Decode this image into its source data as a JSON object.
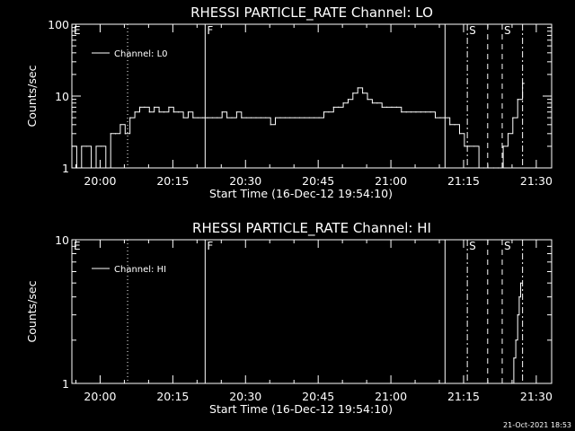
{
  "timestamp": "21-Oct-2021 18:53",
  "chart_data": [
    {
      "type": "line",
      "title": "RHESSI PARTICLE_RATE Channel: LO",
      "xlabel": "Start Time (16-Dec-12 19:54:10)",
      "ylabel": "Counts/sec",
      "yscale": "log",
      "ylim": [
        1,
        100
      ],
      "xlim_minutes_from_start": [
        0,
        99
      ],
      "x_ticks": [
        {
          "label": "20:00",
          "minutes": 5.83
        },
        {
          "label": "20:15",
          "minutes": 20.83
        },
        {
          "label": "20:30",
          "minutes": 35.83
        },
        {
          "label": "20:45",
          "minutes": 50.83
        },
        {
          "label": "21:00",
          "minutes": 65.83
        },
        {
          "label": "21:15",
          "minutes": 80.83
        },
        {
          "label": "21:30",
          "minutes": 95.83
        }
      ],
      "y_ticks": [
        {
          "label": "1",
          "value": 1
        },
        {
          "label": "10",
          "value": 10
        },
        {
          "label": "100",
          "value": 100
        }
      ],
      "legend": {
        "label": "Channel: L0",
        "placement": "top-left"
      },
      "markers": [
        {
          "label": "E",
          "minutes": 0,
          "style": "none"
        },
        {
          "label": "",
          "minutes": 11.5,
          "style": "dotted"
        },
        {
          "label": "F",
          "minutes": 27.5,
          "style": "solid"
        },
        {
          "label": "",
          "minutes": 77.0,
          "style": "solid"
        },
        {
          "label": "S",
          "minutes": 81.6,
          "style": "dashdot"
        },
        {
          "label": "",
          "minutes": 85.8,
          "style": "dashed"
        },
        {
          "label": "S",
          "minutes": 88.8,
          "style": "dashed"
        },
        {
          "label": "",
          "minutes": 93.0,
          "style": "dashdot"
        }
      ],
      "series": [
        {
          "name": "Channel: L0",
          "x": [
            0,
            1,
            2,
            3,
            4,
            5,
            6,
            7,
            8,
            9,
            10,
            11,
            12,
            13,
            14,
            15,
            16,
            17,
            18,
            19,
            20,
            21,
            22,
            23,
            24,
            25,
            26,
            27,
            28,
            29,
            30,
            31,
            32,
            33,
            34,
            35,
            36,
            37,
            38,
            39,
            40,
            41,
            42,
            43,
            44,
            45,
            46,
            47,
            48,
            49,
            50,
            51,
            52,
            53,
            54,
            55,
            56,
            57,
            58,
            59,
            60,
            61,
            62,
            63,
            64,
            65,
            66,
            67,
            68,
            69,
            70,
            71,
            72,
            73,
            74,
            75,
            76,
            77,
            78,
            79,
            80,
            81,
            82,
            83,
            84,
            85,
            86,
            87,
            88,
            89,
            90,
            91,
            92,
            93
          ],
          "values": [
            2,
            1,
            2,
            2,
            1,
            2,
            2,
            1,
            3,
            3,
            4,
            3,
            5,
            6,
            7,
            7,
            6,
            7,
            6,
            6,
            7,
            6,
            6,
            5,
            6,
            5,
            5,
            5,
            5,
            5,
            5,
            6,
            5,
            5,
            6,
            5,
            5,
            5,
            5,
            5,
            5,
            4,
            5,
            5,
            5,
            5,
            5,
            5,
            5,
            5,
            5,
            5,
            6,
            6,
            7,
            7,
            8,
            9,
            11,
            13,
            11,
            9,
            8,
            8,
            7,
            7,
            7,
            7,
            6,
            6,
            6,
            6,
            6,
            6,
            6,
            5,
            5,
            5,
            4,
            4,
            3,
            2,
            2,
            2,
            1,
            1,
            1,
            1,
            1,
            2,
            3,
            5,
            9,
            15
          ]
        }
      ]
    },
    {
      "type": "line",
      "title": "RHESSI PARTICLE_RATE Channel: HI",
      "xlabel": "Start Time (16-Dec-12 19:54:10)",
      "ylabel": "Counts/sec",
      "yscale": "log",
      "ylim": [
        1,
        10
      ],
      "xlim_minutes_from_start": [
        0,
        99
      ],
      "x_ticks": [
        {
          "label": "20:00",
          "minutes": 5.83
        },
        {
          "label": "20:15",
          "minutes": 20.83
        },
        {
          "label": "20:30",
          "minutes": 35.83
        },
        {
          "label": "20:45",
          "minutes": 50.83
        },
        {
          "label": "21:00",
          "minutes": 65.83
        },
        {
          "label": "21:15",
          "minutes": 80.83
        },
        {
          "label": "21:30",
          "minutes": 95.83
        }
      ],
      "y_ticks": [
        {
          "label": "1",
          "value": 1
        },
        {
          "label": "10",
          "value": 10
        }
      ],
      "legend": {
        "label": "Channel: HI",
        "placement": "top-left"
      },
      "markers": [
        {
          "label": "E",
          "minutes": 0,
          "style": "none"
        },
        {
          "label": "",
          "minutes": 11.5,
          "style": "dotted"
        },
        {
          "label": "F",
          "minutes": 27.5,
          "style": "solid"
        },
        {
          "label": "",
          "minutes": 77.0,
          "style": "solid"
        },
        {
          "label": "S",
          "minutes": 81.6,
          "style": "dashdot"
        },
        {
          "label": "",
          "minutes": 85.8,
          "style": "dashed"
        },
        {
          "label": "S",
          "minutes": 88.8,
          "style": "dashed"
        },
        {
          "label": "",
          "minutes": 93.0,
          "style": "dashdot"
        }
      ],
      "series": [
        {
          "name": "Channel: HI",
          "x": [
            90.8,
            91.2,
            91.6,
            92.0,
            92.3,
            92.6
          ],
          "values": [
            1,
            1.5,
            2,
            3,
            4,
            5
          ]
        }
      ]
    }
  ]
}
